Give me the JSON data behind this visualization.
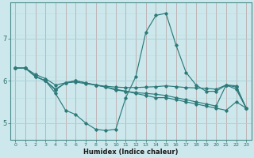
{
  "title": "",
  "xlabel": "Humidex (Indice chaleur)",
  "ylabel": "",
  "bg_color": "#cce8ec",
  "grid_color": "#aad4d8",
  "line_color": "#2d7a7a",
  "red_line_color": "#d08080",
  "xlim": [
    -0.5,
    23.5
  ],
  "ylim": [
    4.6,
    7.85
  ],
  "yticks": [
    5,
    6,
    7
  ],
  "xticks": [
    0,
    1,
    2,
    3,
    4,
    5,
    6,
    7,
    8,
    9,
    10,
    11,
    12,
    13,
    14,
    15,
    16,
    17,
    18,
    19,
    20,
    21,
    22,
    23
  ],
  "lines": [
    {
      "x": [
        0,
        1,
        2,
        3,
        4,
        5,
        6,
        7,
        8,
        9,
        10,
        11,
        12,
        13,
        14,
        15,
        16,
        17,
        18,
        19,
        20,
        21,
        22,
        23
      ],
      "y": [
        6.3,
        6.3,
        6.1,
        6.0,
        5.7,
        5.3,
        5.2,
        5.0,
        4.85,
        4.82,
        4.85,
        5.6,
        6.1,
        7.15,
        7.55,
        7.6,
        6.85,
        6.2,
        5.9,
        5.75,
        5.75,
        5.9,
        5.8,
        5.35
      ]
    },
    {
      "x": [
        0,
        1,
        2,
        3,
        4,
        5,
        6,
        7,
        8,
        9,
        10,
        11,
        12,
        13,
        14,
        15,
        16,
        17,
        18,
        19,
        20,
        21,
        22,
        23
      ],
      "y": [
        6.3,
        6.3,
        6.1,
        6.0,
        5.8,
        5.95,
        6.0,
        5.95,
        5.9,
        5.85,
        5.8,
        5.75,
        5.7,
        5.65,
        5.6,
        5.6,
        5.55,
        5.5,
        5.45,
        5.4,
        5.35,
        5.3,
        5.5,
        5.35
      ]
    },
    {
      "x": [
        0,
        1,
        2,
        3,
        4,
        5,
        6,
        7,
        8,
        9,
        10,
        11,
        12,
        13,
        14,
        15,
        16,
        17,
        18,
        19,
        20,
        21,
        22,
        23
      ],
      "y": [
        6.3,
        6.3,
        6.15,
        6.05,
        5.9,
        5.95,
        5.97,
        5.93,
        5.9,
        5.87,
        5.85,
        5.84,
        5.84,
        5.85,
        5.86,
        5.88,
        5.86,
        5.84,
        5.83,
        5.82,
        5.8,
        5.9,
        5.88,
        5.35
      ]
    },
    {
      "x": [
        0,
        1,
        2,
        3,
        4,
        5,
        6,
        7,
        8,
        9,
        10,
        11,
        12,
        13,
        14,
        15,
        16,
        17,
        18,
        19,
        20,
        21,
        22,
        23
      ],
      "y": [
        6.3,
        6.3,
        6.1,
        6.0,
        5.78,
        5.95,
        6.0,
        5.95,
        5.9,
        5.85,
        5.78,
        5.75,
        5.72,
        5.7,
        5.68,
        5.65,
        5.6,
        5.55,
        5.5,
        5.45,
        5.4,
        5.9,
        5.85,
        5.35
      ]
    }
  ]
}
